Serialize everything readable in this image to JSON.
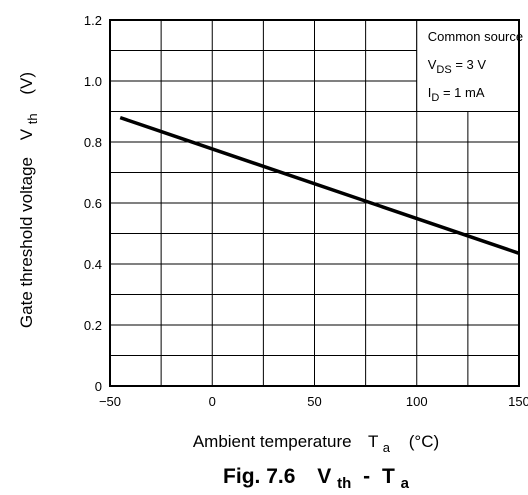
{
  "chart_data": {
    "type": "line",
    "figure_caption": "Fig. 7.6",
    "caption_symbols": {
      "v": "V",
      "v_sub": "th",
      "sep": "-",
      "t": "T",
      "t_sub": "a"
    },
    "xlabel": {
      "text": "Ambient temperature",
      "symbol": "T",
      "sub": "a",
      "unit": "(°C)"
    },
    "ylabel": {
      "text": "Gate threshold voltage",
      "symbol": "V",
      "sub": "th",
      "unit": "(V)"
    },
    "xlim": [
      -50,
      150
    ],
    "ylim": [
      0,
      1.2
    ],
    "x_ticks": [
      -50,
      0,
      50,
      100,
      150
    ],
    "x_tick_labels": [
      "−50",
      "0",
      "50",
      "100",
      "150"
    ],
    "y_ticks": [
      0,
      0.2,
      0.4,
      0.6,
      0.8,
      1.0,
      1.2
    ],
    "y_tick_labels": [
      "0",
      "0.2",
      "0.4",
      "0.6",
      "0.8",
      "1.0",
      "1.2"
    ],
    "x_minor_step": 25,
    "y_minor_step": 0.1,
    "grid": true,
    "legend_position": "top-right",
    "conditions": [
      {
        "text": "Common source"
      },
      {
        "pre": "V",
        "sub": "DS",
        "post": " = 3 V"
      },
      {
        "pre": "I",
        "sub": "D",
        "post": " = 1 mA"
      }
    ],
    "series": [
      {
        "x": [
          -45,
          150
        ],
        "y": [
          0.88,
          0.435
        ]
      }
    ]
  }
}
